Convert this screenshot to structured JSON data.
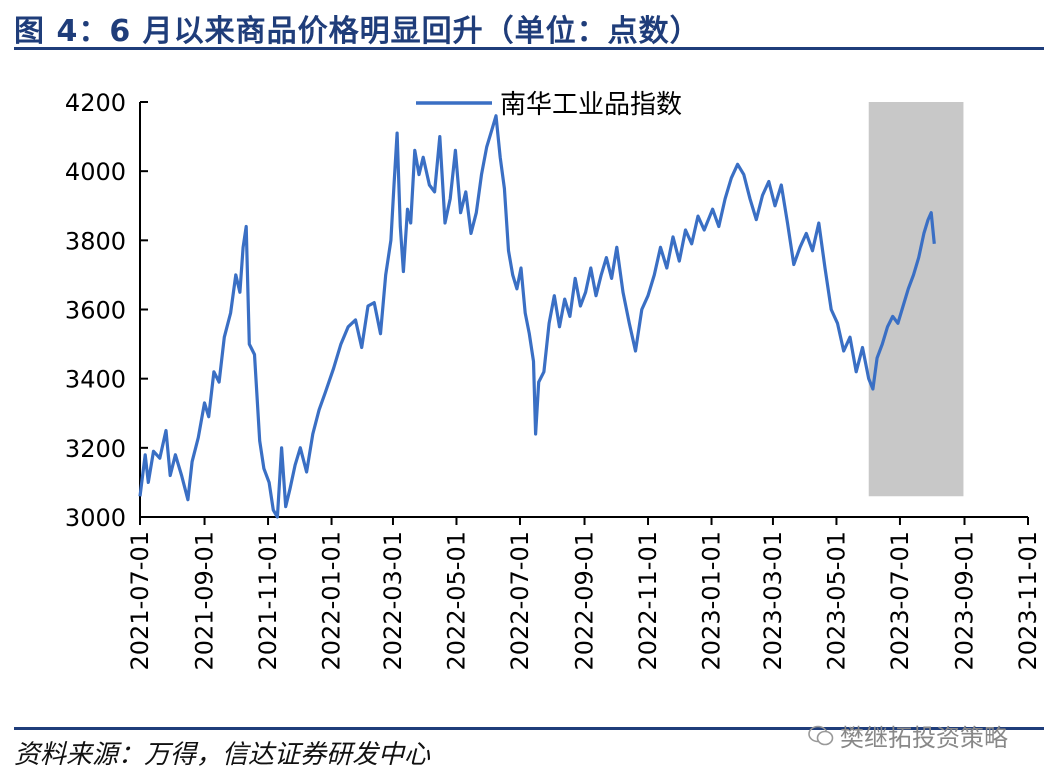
{
  "header": {
    "title": "图 4：6 月以来商品价格明显回升（单位：点数）"
  },
  "footer": {
    "source": "资料来源：万得，信达证券研发中心",
    "watermark": "樊继拓投资策略"
  },
  "colors": {
    "series": "#3a6fc4",
    "highlight": "#c8c8c8",
    "brand": "#1f3d7a"
  },
  "chart_data": {
    "type": "line",
    "title": "",
    "xlabel": "",
    "ylabel": "",
    "ylim": [
      3000,
      4200
    ],
    "yticks": [
      "3000",
      "3200",
      "3400",
      "3600",
      "3800",
      "4000",
      "4200"
    ],
    "xlim": [
      "2021-07-01",
      "2023-11-01"
    ],
    "xticks": [
      "2021-07-01",
      "2021-09-01",
      "2021-11-01",
      "2022-01-01",
      "2022-03-01",
      "2022-05-01",
      "2022-07-01",
      "2022-09-01",
      "2022-11-01",
      "2023-01-01",
      "2023-03-01",
      "2023-05-01",
      "2023-07-01",
      "2023-09-01",
      "2023-11-01"
    ],
    "legend": {
      "position": "top-center"
    },
    "highlight": {
      "from": "2023-06-01",
      "to": "2023-08-31",
      "y_from": 3060,
      "y_to": 4200
    },
    "series": [
      {
        "name": "南华工业品指数",
        "points": [
          [
            "2021-07-01",
            3060
          ],
          [
            "2021-07-06",
            3180
          ],
          [
            "2021-07-09",
            3100
          ],
          [
            "2021-07-14",
            3190
          ],
          [
            "2021-07-20",
            3170
          ],
          [
            "2021-07-26",
            3250
          ],
          [
            "2021-07-30",
            3120
          ],
          [
            "2021-08-04",
            3180
          ],
          [
            "2021-08-10",
            3120
          ],
          [
            "2021-08-16",
            3050
          ],
          [
            "2021-08-20",
            3160
          ],
          [
            "2021-08-26",
            3230
          ],
          [
            "2021-09-01",
            3330
          ],
          [
            "2021-09-05",
            3290
          ],
          [
            "2021-09-10",
            3420
          ],
          [
            "2021-09-15",
            3390
          ],
          [
            "2021-09-20",
            3520
          ],
          [
            "2021-09-26",
            3590
          ],
          [
            "2021-10-01",
            3700
          ],
          [
            "2021-10-05",
            3650
          ],
          [
            "2021-10-08",
            3780
          ],
          [
            "2021-10-11",
            3840
          ],
          [
            "2021-10-14",
            3500
          ],
          [
            "2021-10-19",
            3470
          ],
          [
            "2021-10-24",
            3220
          ],
          [
            "2021-10-28",
            3140
          ],
          [
            "2021-11-02",
            3100
          ],
          [
            "2021-11-06",
            3020
          ],
          [
            "2021-11-10",
            3000
          ],
          [
            "2021-11-14",
            3200
          ],
          [
            "2021-11-18",
            3030
          ],
          [
            "2021-11-22",
            3080
          ],
          [
            "2021-11-27",
            3150
          ],
          [
            "2021-12-02",
            3200
          ],
          [
            "2021-12-08",
            3130
          ],
          [
            "2021-12-14",
            3240
          ],
          [
            "2021-12-20",
            3310
          ],
          [
            "2021-12-26",
            3360
          ],
          [
            "2022-01-03",
            3430
          ],
          [
            "2022-01-10",
            3500
          ],
          [
            "2022-01-17",
            3550
          ],
          [
            "2022-01-24",
            3570
          ],
          [
            "2022-01-30",
            3490
          ],
          [
            "2022-02-05",
            3610
          ],
          [
            "2022-02-11",
            3620
          ],
          [
            "2022-02-17",
            3530
          ],
          [
            "2022-02-22",
            3700
          ],
          [
            "2022-02-27",
            3800
          ],
          [
            "2022-03-02",
            3960
          ],
          [
            "2022-03-05",
            4110
          ],
          [
            "2022-03-08",
            3840
          ],
          [
            "2022-03-11",
            3710
          ],
          [
            "2022-03-15",
            3890
          ],
          [
            "2022-03-18",
            3850
          ],
          [
            "2022-03-22",
            4060
          ],
          [
            "2022-03-26",
            3990
          ],
          [
            "2022-03-30",
            4040
          ],
          [
            "2022-04-05",
            3960
          ],
          [
            "2022-04-10",
            3940
          ],
          [
            "2022-04-15",
            4100
          ],
          [
            "2022-04-20",
            3850
          ],
          [
            "2022-04-25",
            3920
          ],
          [
            "2022-04-30",
            4060
          ],
          [
            "2022-05-05",
            3880
          ],
          [
            "2022-05-10",
            3940
          ],
          [
            "2022-05-15",
            3820
          ],
          [
            "2022-05-20",
            3880
          ],
          [
            "2022-05-25",
            3990
          ],
          [
            "2022-05-30",
            4070
          ],
          [
            "2022-06-04",
            4120
          ],
          [
            "2022-06-08",
            4160
          ],
          [
            "2022-06-12",
            4040
          ],
          [
            "2022-06-16",
            3950
          ],
          [
            "2022-06-20",
            3770
          ],
          [
            "2022-06-24",
            3700
          ],
          [
            "2022-06-28",
            3660
          ],
          [
            "2022-07-02",
            3720
          ],
          [
            "2022-07-06",
            3590
          ],
          [
            "2022-07-10",
            3530
          ],
          [
            "2022-07-14",
            3450
          ],
          [
            "2022-07-16",
            3240
          ],
          [
            "2022-07-19",
            3390
          ],
          [
            "2022-07-24",
            3420
          ],
          [
            "2022-07-29",
            3560
          ],
          [
            "2022-08-03",
            3640
          ],
          [
            "2022-08-08",
            3550
          ],
          [
            "2022-08-13",
            3630
          ],
          [
            "2022-08-18",
            3580
          ],
          [
            "2022-08-23",
            3690
          ],
          [
            "2022-08-28",
            3610
          ],
          [
            "2022-09-02",
            3650
          ],
          [
            "2022-09-07",
            3720
          ],
          [
            "2022-09-12",
            3640
          ],
          [
            "2022-09-17",
            3700
          ],
          [
            "2022-09-22",
            3750
          ],
          [
            "2022-09-27",
            3690
          ],
          [
            "2022-10-02",
            3780
          ],
          [
            "2022-10-08",
            3650
          ],
          [
            "2022-10-14",
            3560
          ],
          [
            "2022-10-20",
            3480
          ],
          [
            "2022-10-26",
            3600
          ],
          [
            "2022-11-01",
            3640
          ],
          [
            "2022-11-07",
            3700
          ],
          [
            "2022-11-13",
            3780
          ],
          [
            "2022-11-19",
            3720
          ],
          [
            "2022-11-25",
            3810
          ],
          [
            "2022-12-01",
            3740
          ],
          [
            "2022-12-07",
            3830
          ],
          [
            "2022-12-13",
            3790
          ],
          [
            "2022-12-19",
            3870
          ],
          [
            "2022-12-25",
            3830
          ],
          [
            "2023-01-02",
            3890
          ],
          [
            "2023-01-08",
            3840
          ],
          [
            "2023-01-14",
            3920
          ],
          [
            "2023-01-20",
            3980
          ],
          [
            "2023-01-26",
            4020
          ],
          [
            "2023-02-01",
            3990
          ],
          [
            "2023-02-07",
            3920
          ],
          [
            "2023-02-13",
            3860
          ],
          [
            "2023-02-19",
            3930
          ],
          [
            "2023-02-25",
            3970
          ],
          [
            "2023-03-03",
            3900
          ],
          [
            "2023-03-09",
            3960
          ],
          [
            "2023-03-15",
            3850
          ],
          [
            "2023-03-21",
            3730
          ],
          [
            "2023-03-27",
            3780
          ],
          [
            "2023-04-02",
            3820
          ],
          [
            "2023-04-08",
            3770
          ],
          [
            "2023-04-14",
            3850
          ],
          [
            "2023-04-20",
            3720
          ],
          [
            "2023-04-26",
            3600
          ],
          [
            "2023-05-02",
            3560
          ],
          [
            "2023-05-08",
            3480
          ],
          [
            "2023-05-14",
            3520
          ],
          [
            "2023-05-20",
            3420
          ],
          [
            "2023-05-26",
            3490
          ],
          [
            "2023-06-01",
            3400
          ],
          [
            "2023-06-05",
            3370
          ],
          [
            "2023-06-09",
            3460
          ],
          [
            "2023-06-14",
            3500
          ],
          [
            "2023-06-19",
            3550
          ],
          [
            "2023-06-24",
            3580
          ],
          [
            "2023-06-29",
            3560
          ],
          [
            "2023-07-04",
            3610
          ],
          [
            "2023-07-09",
            3660
          ],
          [
            "2023-07-14",
            3700
          ],
          [
            "2023-07-19",
            3750
          ],
          [
            "2023-07-24",
            3820
          ],
          [
            "2023-07-28",
            3860
          ],
          [
            "2023-07-31",
            3880
          ],
          [
            "2023-08-03",
            3790
          ]
        ]
      }
    ]
  }
}
